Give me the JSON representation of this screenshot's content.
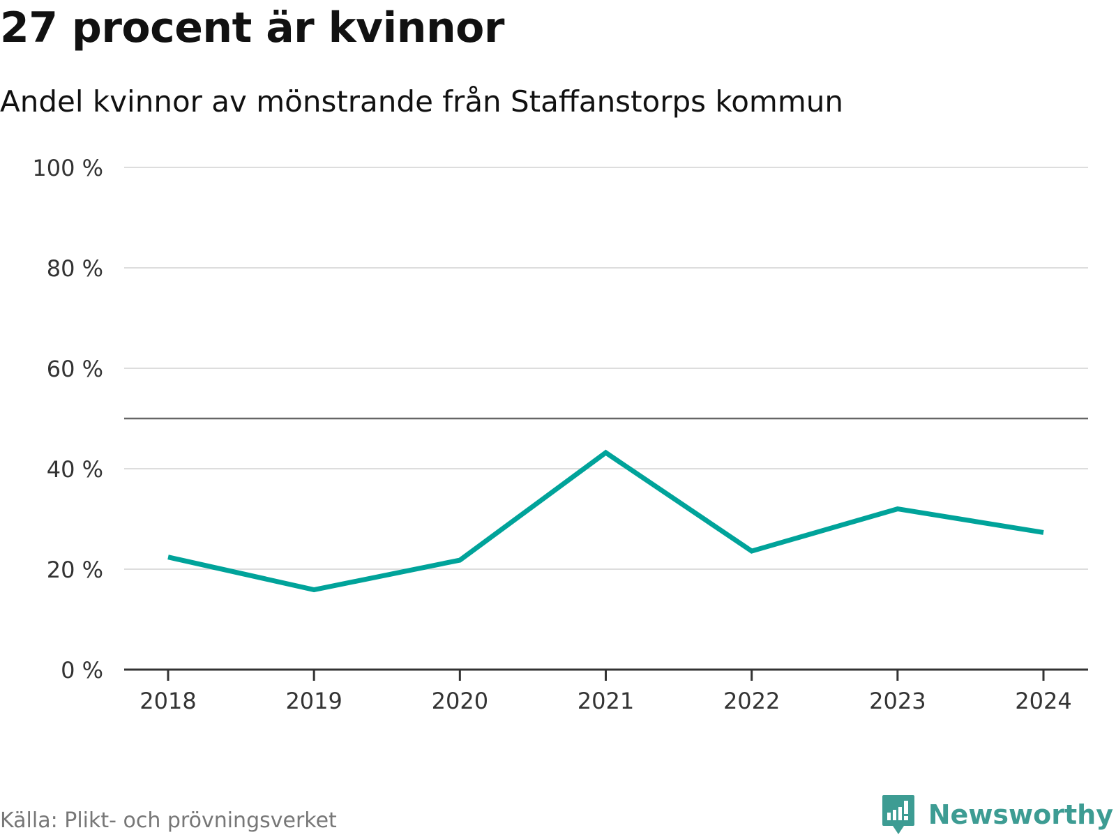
{
  "header": {
    "title": "27 procent är kvinnor",
    "subtitle": "Andel kvinnor av mönstrande från Staffanstorps kommun"
  },
  "footer": {
    "source": "Källa: Plikt- och prövningsverket",
    "brand": "Newsworthy",
    "brand_icon": "newsworthy-logo-icon"
  },
  "colors": {
    "line": "#00a39a",
    "grid": "#dddddd",
    "axis": "#333333",
    "reference": "#666666",
    "brand": "#3d9c93"
  },
  "chart_data": {
    "type": "line",
    "title": "27 procent är kvinnor",
    "subtitle": "Andel kvinnor av mönstrande från Staffanstorps kommun",
    "xlabel": "",
    "ylabel": "",
    "categories": [
      "2018",
      "2019",
      "2020",
      "2021",
      "2022",
      "2023",
      "2024"
    ],
    "series": [
      {
        "values": [
          22.4,
          15.9,
          21.8,
          43.2,
          23.6,
          32.0,
          27.3
        ]
      }
    ],
    "ylim": [
      0,
      100
    ],
    "y_ticks": [
      0,
      20,
      40,
      60,
      80,
      100
    ],
    "y_tick_labels": [
      "0 %",
      "20 %",
      "40 %",
      "60 %",
      "80 %",
      "100 %"
    ],
    "reference_line": 50,
    "grid": true,
    "legend": "none"
  }
}
